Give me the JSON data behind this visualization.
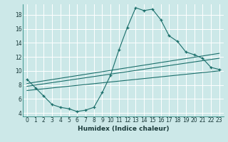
{
  "xlabel": "Humidex (Indice chaleur)",
  "bg_color": "#cce8e8",
  "line_color": "#1a6e6a",
  "grid_color": "#b8d8d8",
  "xlim": [
    -0.5,
    23.5
  ],
  "ylim": [
    3.5,
    19.5
  ],
  "xticks": [
    0,
    1,
    2,
    3,
    4,
    5,
    6,
    7,
    8,
    9,
    10,
    11,
    12,
    13,
    14,
    15,
    16,
    17,
    18,
    19,
    20,
    21,
    22,
    23
  ],
  "yticks": [
    4,
    6,
    8,
    10,
    12,
    14,
    16,
    18
  ],
  "curve_x": [
    0,
    1,
    2,
    3,
    4,
    5,
    6,
    7,
    8,
    9,
    10,
    11,
    12,
    13,
    14,
    15,
    16,
    17,
    18,
    19,
    20,
    21,
    22,
    23
  ],
  "curve_y": [
    8.8,
    7.6,
    6.4,
    5.2,
    4.8,
    4.6,
    4.2,
    4.4,
    4.8,
    6.9,
    9.4,
    13.0,
    16.2,
    19.0,
    18.6,
    18.8,
    17.3,
    15.0,
    14.2,
    12.7,
    12.3,
    11.8,
    10.5,
    10.2
  ],
  "line1_x": [
    0,
    23
  ],
  "line1_y": [
    8.2,
    12.5
  ],
  "line2_x": [
    0,
    23
  ],
  "line2_y": [
    7.8,
    11.8
  ],
  "line3_x": [
    0,
    23
  ],
  "line3_y": [
    7.2,
    10.0
  ]
}
